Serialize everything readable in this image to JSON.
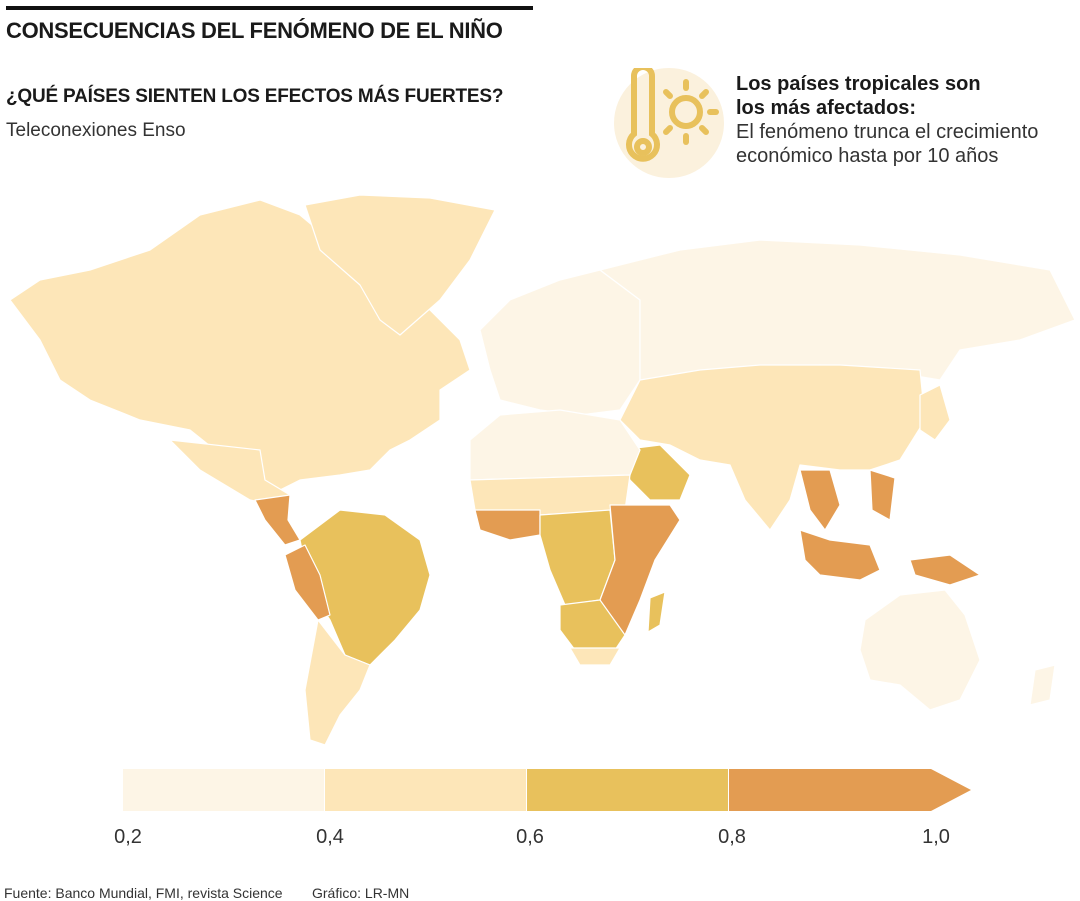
{
  "header": {
    "title": "CONSECUENCIAS DEL FENÓMENO DE EL NIÑO",
    "subtitle": "¿QUÉ PAÍSES SIENTEN LOS EFECTOS MÁS FUERTES?",
    "description": "Teleconexiones Enso"
  },
  "callout": {
    "icon": "thermometer-sun-icon",
    "headline_1": "Los países tropicales son",
    "headline_2": "los más afectados:",
    "body_1": "El fenómeno trunca el crecimiento",
    "body_2": "económico hasta por 10 años"
  },
  "legend": {
    "ticks": [
      "0,2",
      "0,4",
      "0,6",
      "0,8",
      "1,0"
    ],
    "colors": [
      "#fdf5e6",
      "#fde6b8",
      "#e8c15c",
      "#e39c52"
    ]
  },
  "footer": {
    "source": "Fuente: Banco Mundial, FMI, revista Science",
    "credit": "Gráfico: LR-MN"
  }
}
